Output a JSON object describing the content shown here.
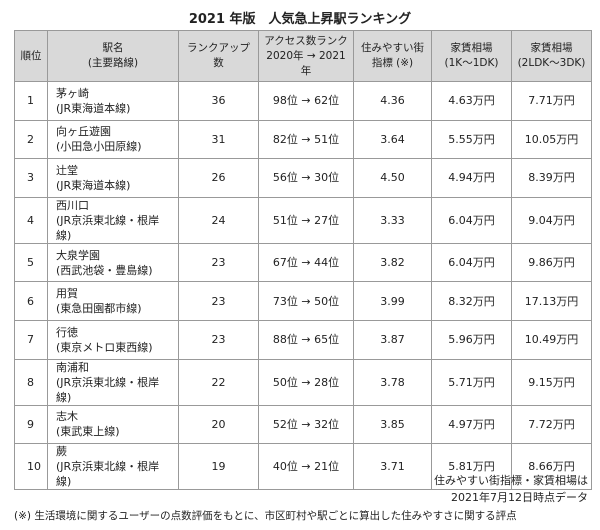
{
  "title": "2021 年版　人気急上昇駅ランキング",
  "table": {
    "header": [
      [
        "順位"
      ],
      [
        "駅名",
        "(主要路線)"
      ],
      [
        "ランクアップ数"
      ],
      [
        "アクセス数ランク",
        "2020年 → 2021年"
      ],
      [
        "住みやすい街",
        "指標 (※)"
      ],
      [
        "家賃相場",
        "(1K～1DK)"
      ],
      [
        "家賃相場",
        "(2LDK～3DK)"
      ]
    ],
    "rows": [
      [
        "1",
        [
          "茅ヶ崎",
          "(JR東海道本線)"
        ],
        "36",
        "98位 → 62位",
        "4.36",
        "4.63万円",
        "7.71万円"
      ],
      [
        "2",
        [
          "向ヶ丘遊園",
          "(小田急小田原線)"
        ],
        "31",
        "82位 → 51位",
        "3.64",
        "5.55万円",
        "10.05万円"
      ],
      [
        "3",
        [
          "辻堂",
          "(JR東海道本線)"
        ],
        "26",
        "56位 → 30位",
        "4.50",
        "4.94万円",
        "8.39万円"
      ],
      [
        "4",
        [
          "西川口",
          "(JR京浜東北線・根岸線)"
        ],
        "24",
        "51位 → 27位",
        "3.33",
        "6.04万円",
        "9.04万円"
      ],
      [
        "5",
        [
          "大泉学園",
          "(西武池袋・豊島線)"
        ],
        "23",
        "67位 → 44位",
        "3.82",
        "6.04万円",
        "9.86万円"
      ],
      [
        "6",
        [
          "用賀",
          "(東急田園都市線)"
        ],
        "23",
        "73位 → 50位",
        "3.99",
        "8.32万円",
        "17.13万円"
      ],
      [
        "7",
        [
          "行徳",
          "(東京メトロ東西線)"
        ],
        "23",
        "88位 → 65位",
        "3.87",
        "5.96万円",
        "10.49万円"
      ],
      [
        "8",
        [
          "南浦和",
          "(JR京浜東北線・根岸線)"
        ],
        "22",
        "50位 → 28位",
        "3.78",
        "5.71万円",
        "9.15万円"
      ],
      [
        "9",
        [
          "志木",
          "(東武東上線)"
        ],
        "20",
        "52位 → 32位",
        "3.85",
        "4.97万円",
        "7.72万円"
      ],
      [
        "10",
        [
          "蕨",
          "(JR京浜東北線・根岸線)"
        ],
        "19",
        "40位 → 21位",
        "3.71",
        "5.81万円",
        "8.66万円"
      ]
    ]
  },
  "source_notes": [
    "住みやすい街指標・家賃相場は",
    "2021年7月12日時点データ"
  ],
  "footnote": "(※) 生活環境に関するユーザーの点数評価をもとに、市区町村や駅ごとに算出した住みやすさに関する評点"
}
